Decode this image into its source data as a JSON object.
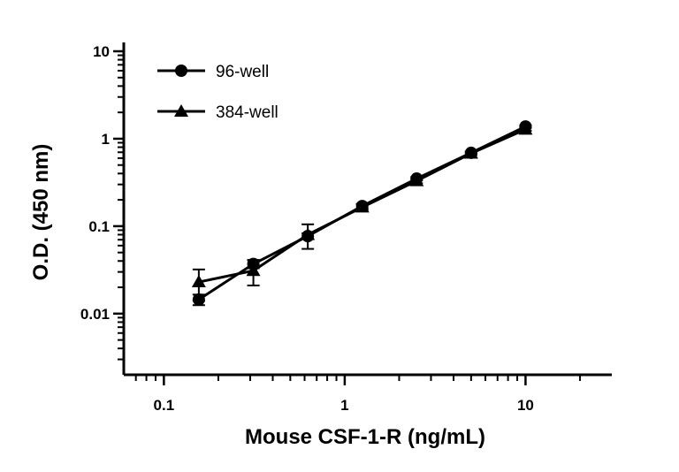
{
  "chart_data": {
    "type": "line",
    "xscale": "log",
    "yscale": "log",
    "xlabel": "Mouse CSF-1-R (ng/mL)",
    "ylabel": "O.D. (450 nm)",
    "xlim": [
      0.06,
      30
    ],
    "ylim": [
      0.002,
      10
    ],
    "xticks": [
      {
        "value": 0.1,
        "label": "0.1"
      },
      {
        "value": 1,
        "label": "1"
      },
      {
        "value": 10,
        "label": "10"
      }
    ],
    "yticks": [
      {
        "value": 0.01,
        "label": "0.01"
      },
      {
        "value": 0.1,
        "label": "0.1"
      },
      {
        "value": 1,
        "label": "1"
      },
      {
        "value": 10,
        "label": "10"
      }
    ],
    "legend_position": "top-left",
    "series": [
      {
        "name": "96-well",
        "marker": "circle",
        "x": [
          0.156,
          0.3125,
          0.625,
          1.25,
          2.5,
          5,
          10
        ],
        "y": [
          0.0145,
          0.037,
          0.077,
          0.17,
          0.35,
          0.69,
          1.38
        ],
        "err": [
          0.002,
          0.004,
          0.006,
          0.01,
          0.015,
          0.02,
          0.04
        ]
      },
      {
        "name": "384-well",
        "marker": "triangle",
        "x": [
          0.156,
          0.3125,
          0.625,
          1.25,
          2.5,
          5,
          10
        ],
        "y": [
          0.023,
          0.031,
          0.08,
          0.165,
          0.33,
          0.68,
          1.28
        ],
        "err": [
          0.009,
          0.01,
          0.025,
          0.012,
          0.02,
          0.03,
          0.05
        ]
      }
    ]
  }
}
